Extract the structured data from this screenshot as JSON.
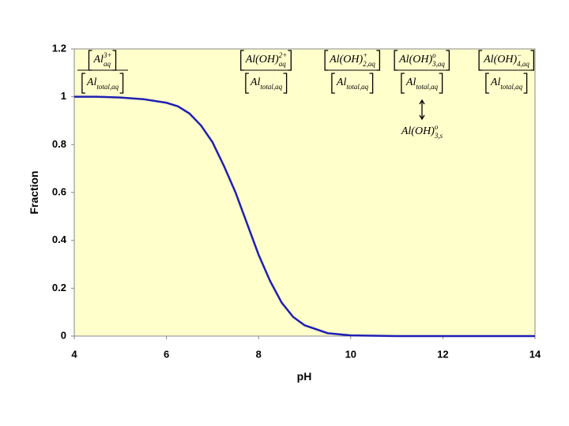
{
  "chart_data": {
    "type": "line",
    "x": [
      4,
      4.5,
      5,
      5.5,
      6,
      6.25,
      6.5,
      6.75,
      7,
      7.25,
      7.5,
      7.75,
      8,
      8.25,
      8.5,
      8.75,
      9,
      9.5,
      10,
      11,
      12,
      13,
      14
    ],
    "values": [
      1.0,
      1.0,
      0.997,
      0.99,
      0.975,
      0.96,
      0.93,
      0.88,
      0.81,
      0.71,
      0.6,
      0.47,
      0.34,
      0.23,
      0.14,
      0.08,
      0.045,
      0.012,
      0.003,
      0,
      0,
      0,
      0
    ],
    "color": "#1f1fb4",
    "xlim": [
      4,
      14
    ],
    "xticks": [
      4,
      6,
      8,
      10,
      12,
      14
    ],
    "ylim": [
      0,
      1.2
    ],
    "yticks": [
      0,
      0.2,
      0.4,
      0.6,
      0.8,
      1,
      1.2
    ],
    "xlabel": "pH",
    "ylabel": "Fraction",
    "annotations": [
      {
        "numerator": {
          "base": "Al",
          "sup": "3+",
          "sub": "aq"
        },
        "denominator": {
          "base": "Al",
          "sub": "total,aq"
        }
      },
      {
        "numerator": {
          "base": "Al(OH)",
          "sup": "2+",
          "sub": "aq"
        },
        "denominator": {
          "base": "Al",
          "sub": "total,aq"
        }
      },
      {
        "numerator": {
          "base": "Al(OH)",
          "sup": "+",
          "sub": "2,aq"
        },
        "denominator": {
          "base": "Al",
          "sub": "total,aq"
        }
      },
      {
        "numerator": {
          "base": "Al(OH)",
          "sup": "o",
          "sub": "3,aq"
        },
        "denominator": {
          "base": "Al",
          "sub": "total,aq"
        }
      },
      {
        "numerator": {
          "base": "Al(OH)",
          "sup": "−",
          "sub": "4,aq"
        },
        "denominator": {
          "base": "Al",
          "sub": "total,aq"
        }
      }
    ],
    "solid": {
      "base": "Al(OH)",
      "sup": "o",
      "sub": "3,s"
    }
  }
}
